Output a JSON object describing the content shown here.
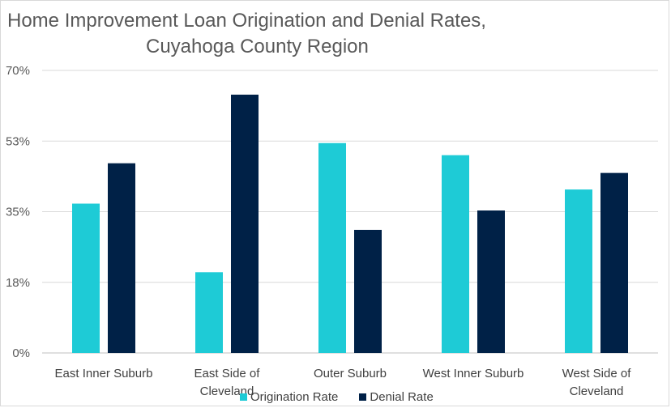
{
  "chart_data": {
    "type": "bar",
    "title_lines": [
      "Home Improvement Loan Origination and Denial Rates,",
      "Cuyahoga County Region"
    ],
    "categories": [
      [
        "East Inner Suburb"
      ],
      [
        "East Side of",
        "Cleveland"
      ],
      [
        "Outer Suburb"
      ],
      [
        "West Inner Suburb"
      ],
      [
        "West Side of",
        "Cleveland"
      ]
    ],
    "series": [
      {
        "name": "Origination Rate",
        "color": "#1ecbd6",
        "values": [
          37,
          20,
          52,
          49,
          40.5
        ]
      },
      {
        "name": "Denial Rate",
        "color": "#002147",
        "values": [
          47,
          64,
          30.5,
          35.3,
          44.6
        ]
      }
    ],
    "yticks": [
      "0%",
      "18%",
      "35%",
      "53%",
      "70%"
    ],
    "ylim": [
      0,
      70
    ],
    "grid": true,
    "legend_position": "bottom"
  }
}
